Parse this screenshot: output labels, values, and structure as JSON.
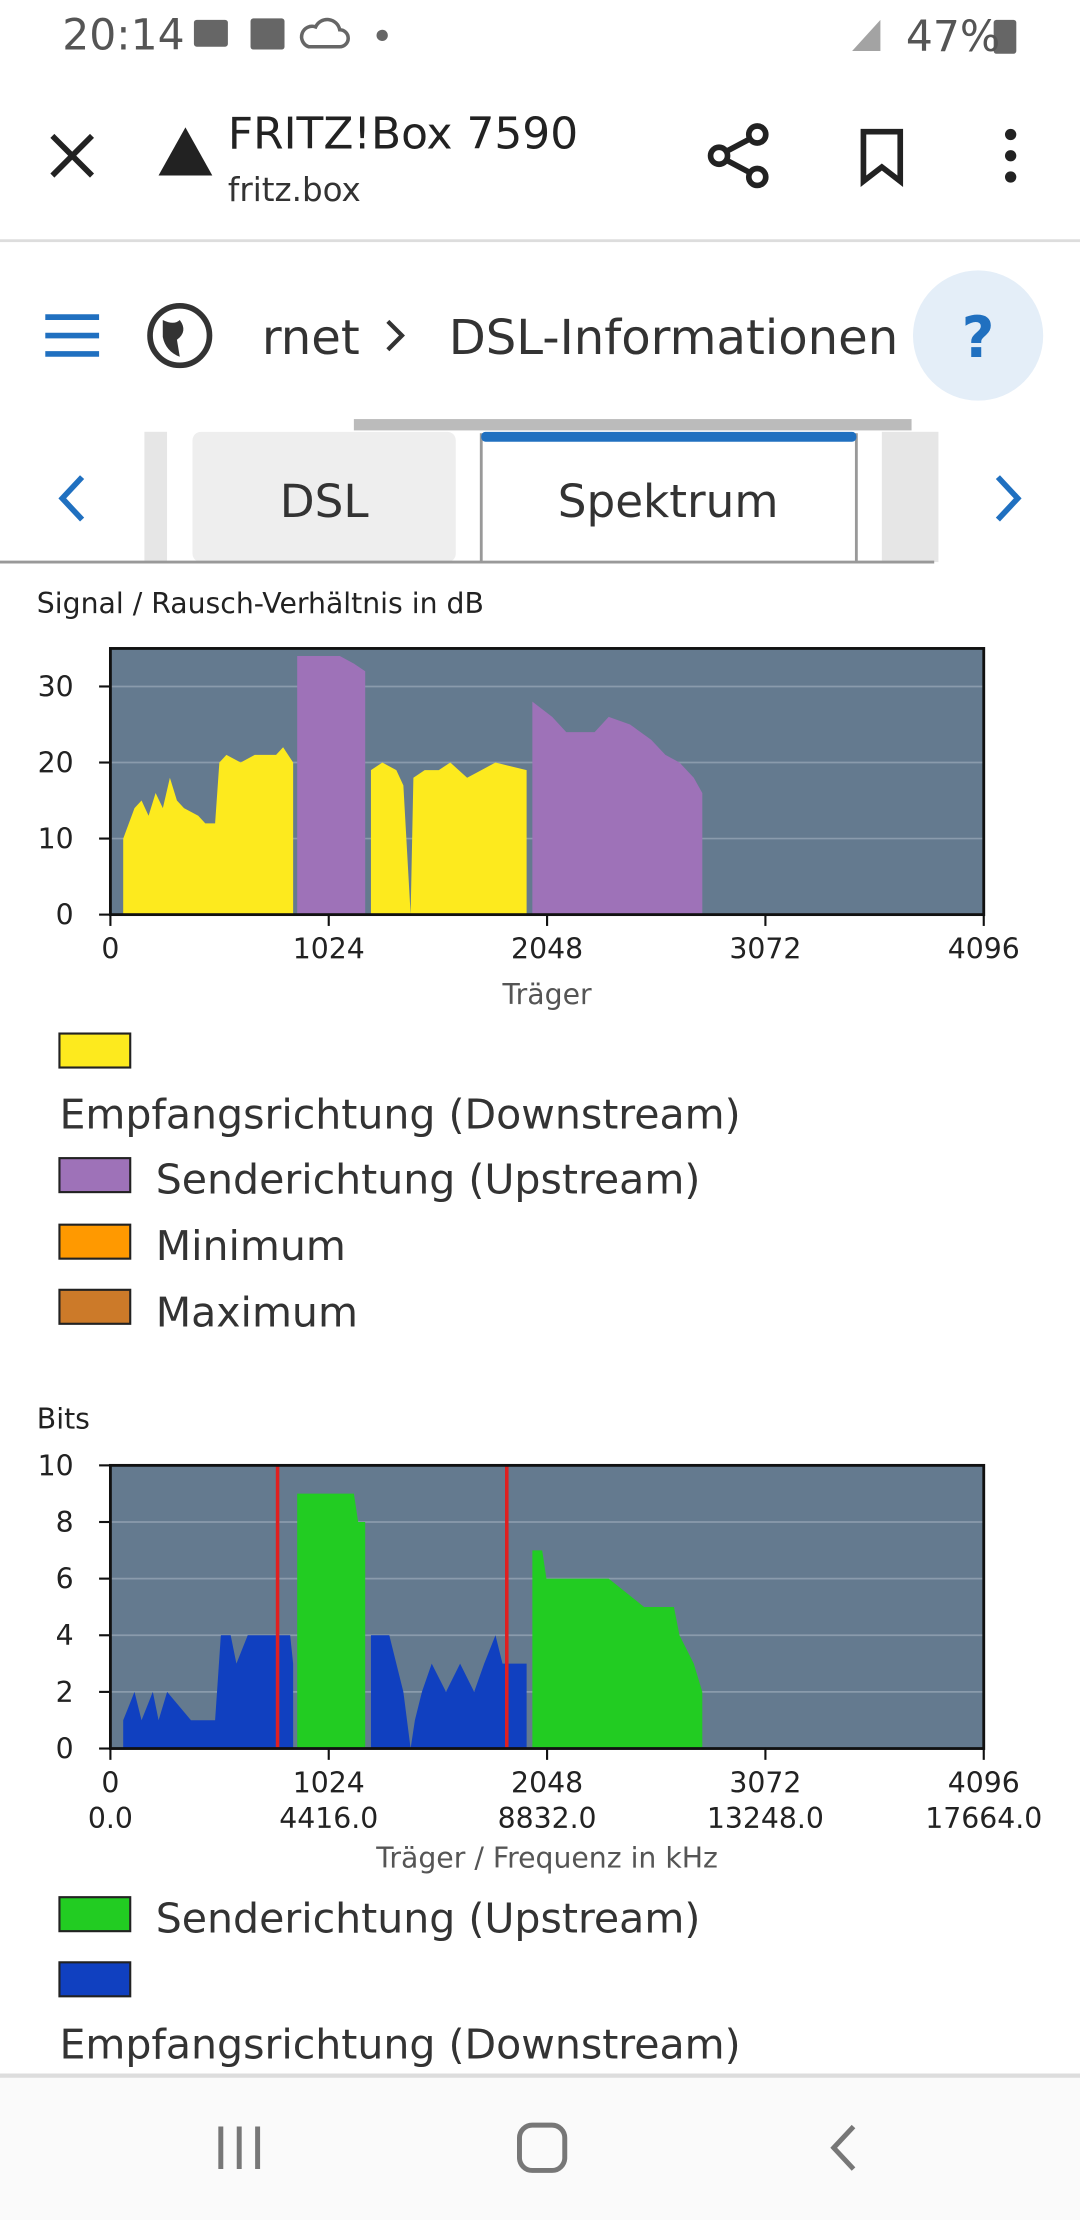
{
  "status_bar": {
    "time": "20:14",
    "battery": "47%"
  },
  "browser_bar": {
    "title": "FRITZ!Box 7590",
    "url": "fritz.box"
  },
  "nav": {
    "crumb_prev": "rnet",
    "crumb_current": "DSL-Informationen",
    "help": "?"
  },
  "tabs": [
    "DSL",
    "Spektrum"
  ],
  "chart_data": [
    {
      "type": "area",
      "title": "Signal / Rausch-Verhältnis in dB",
      "x_label": "Träger",
      "xlim": [
        0,
        4096
      ],
      "xticks": [
        0,
        1024,
        2048,
        3072,
        4096
      ],
      "ylim": [
        0,
        35
      ],
      "yticks": [
        0,
        10,
        20,
        30
      ],
      "grid": true,
      "background": "#647a8f",
      "series": [
        {
          "name": "Empfangsrichtung (Downstream)",
          "color": "#fdea1e",
          "x": [
            60,
            113,
            146,
            179,
            212,
            246,
            279,
            312,
            345,
            412,
            445,
            491,
            511,
            544,
            611,
            677,
            777,
            810,
            857,
            1009,
            1222,
            1275,
            1341,
            1374,
            1408,
            1421,
            1474,
            1540,
            1594,
            1673,
            1740,
            1806,
            1952
          ],
          "values": [
            10,
            14,
            15,
            13,
            16,
            14,
            18,
            15,
            14,
            13,
            12,
            12,
            20,
            21,
            20,
            21,
            21,
            22,
            20,
            null,
            19,
            20,
            19,
            17,
            0,
            18,
            19,
            19,
            20,
            18,
            19,
            20,
            19
          ]
        },
        {
          "name": "Senderichtung (Upstream)",
          "color": "#9e72b8",
          "x": [
            876,
            1076,
            1142,
            1195,
            1540,
            1979,
            2072,
            2138,
            2271,
            2337,
            2437,
            2536,
            2603,
            2669,
            2736,
            2776
          ],
          "values": [
            34,
            34,
            33,
            32,
            null,
            28,
            26,
            24,
            24,
            26,
            25,
            23,
            21,
            20,
            18,
            16
          ]
        },
        {
          "name": "Minimum",
          "color": "#ff9900",
          "x": [],
          "values": []
        },
        {
          "name": "Maximum",
          "color": "#cc7a29",
          "x": [],
          "values": []
        }
      ]
    },
    {
      "type": "area",
      "title": "Bits",
      "x_label": "Träger / Frequenz in kHz",
      "xlim": [
        0,
        4096
      ],
      "xticks": [
        0,
        1024,
        2048,
        3072,
        4096
      ],
      "x2lim": [
        0,
        17664
      ],
      "x2ticks": [
        {
          "value": 0,
          "label": "0.0"
        },
        {
          "value": 4416,
          "label": "4416.0"
        },
        {
          "value": 8832,
          "label": "8832.0"
        },
        {
          "value": 13248,
          "label": "13248.0"
        },
        {
          "value": 17664,
          "label": "17664.0"
        }
      ],
      "ylim": [
        0,
        10
      ],
      "yticks": [
        0,
        2,
        4,
        6,
        8,
        10
      ],
      "grid": true,
      "background": "#647a8f",
      "vlines": {
        "color": "#e02020",
        "x": [
          784,
          1859
        ]
      },
      "series": [
        {
          "name": "Senderichtung (Upstream)",
          "color": "#22cc22",
          "x": [
            876,
            1142,
            1162,
            1195,
            1540,
            1979,
            2025,
            2045,
            2337,
            2503,
            2643,
            2669,
            2736,
            2776
          ],
          "values": [
            9,
            9,
            8,
            8,
            null,
            7,
            7,
            6,
            6,
            5,
            5,
            4,
            3,
            2
          ]
        },
        {
          "name": "Empfangsrichtung (Downstream)",
          "color": "#1040c0",
          "x": [
            60,
            113,
            146,
            199,
            226,
            266,
            378,
            491,
            518,
            564,
            591,
            644,
            843,
            857,
            1009,
            1222,
            1308,
            1341,
            1374,
            1408,
            1428,
            1461,
            1507,
            1574,
            1640,
            1706,
            1753,
            1806,
            1839,
            1952
          ],
          "values": [
            1,
            2,
            1,
            2,
            1,
            2,
            1,
            1,
            4,
            4,
            3,
            4,
            4,
            3,
            null,
            4,
            4,
            3,
            2,
            0,
            1,
            2,
            3,
            2,
            3,
            2,
            3,
            4,
            3,
            3
          ]
        }
      ]
    }
  ]
}
